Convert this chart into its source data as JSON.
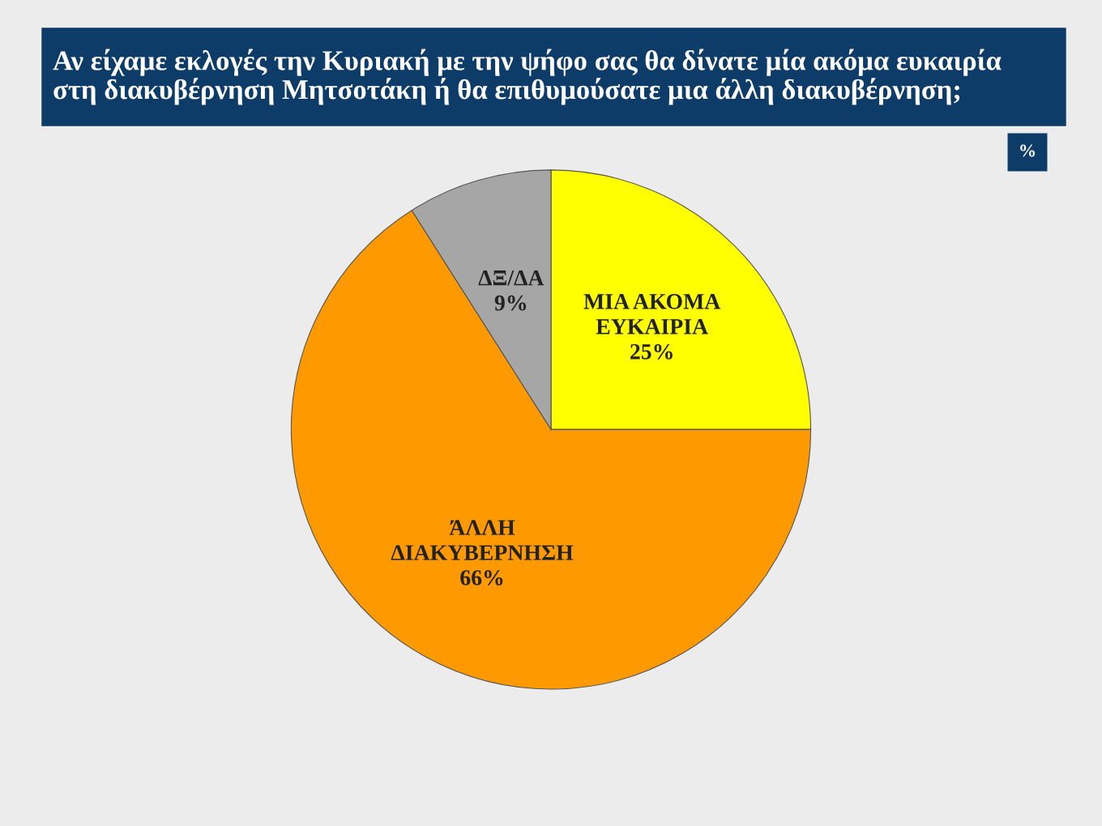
{
  "chart_data": {
    "type": "pie",
    "title": "Αν είχαμε εκλογές την Κυριακή με την ψήφο σας θα δίνατε μία ακόμα ευκαιρία\nστη διακυβέρνηση Μητσοτάκη ή θα επιθυμούσατε μια άλλη διακυβέρνηση;",
    "annotations": [
      "%"
    ],
    "categories": [
      "ΜΙΑ ΑΚΟΜΑ\nΕΥΚΑΙΡΙΑ",
      "ΆΛΛΗ\nΔΙΑΚΥΒΕΡΝΗΣΗ",
      "ΔΞ/ΔΑ"
    ],
    "values": [
      25,
      66,
      9
    ],
    "value_labels": [
      "25%",
      "66%",
      "9%"
    ],
    "colors": [
      "#ffff00",
      "#ff9900",
      "#a6a6a6"
    ]
  }
}
